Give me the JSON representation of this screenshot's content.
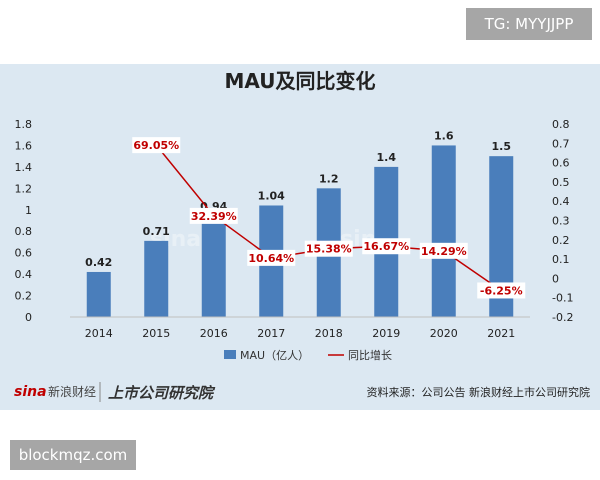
{
  "corner_tag": "TG: MYYJJPP",
  "footer_tag": "blockmqz.com",
  "brand": {
    "sina_logo": "sina",
    "sina_name": "新浪财经",
    "institute_logo": "上市公司研究院"
  },
  "source": "资料来源：公司公告 新浪财经上市公司研究院",
  "colors": {
    "bar": "#4a7ebb",
    "line": "#c00000",
    "label_red": "#c00000",
    "panel_bg": "#dce8f2"
  },
  "chart_data": {
    "type": "bar+line",
    "title": "MAU及同比变化",
    "categories": [
      "2014",
      "2015",
      "2016",
      "2017",
      "2018",
      "2019",
      "2020",
      "2021"
    ],
    "series": [
      {
        "name": "MAU（亿人）",
        "type": "bar",
        "axis": "left",
        "values": [
          0.42,
          0.71,
          0.94,
          1.04,
          1.2,
          1.4,
          1.6,
          1.5
        ],
        "labels": [
          "0.42",
          "0.71",
          "0.94",
          "1.04",
          "1.2",
          "1.4",
          "1.6",
          "1.5"
        ]
      },
      {
        "name": "同比增长",
        "type": "line",
        "axis": "right",
        "values": [
          null,
          0.6905,
          0.3239,
          0.1064,
          0.1538,
          0.1667,
          0.1429,
          -0.0625
        ],
        "labels": [
          null,
          "69.05%",
          "32.39%",
          "10.64%",
          "15.38%",
          "16.67%",
          "14.29%",
          "-6.25%"
        ]
      }
    ],
    "y_left": {
      "min": 0,
      "max": 1.8,
      "ticks": [
        "0",
        "0.2",
        "0.4",
        "0.6",
        "0.8",
        "1",
        "1.2",
        "1.4",
        "1.6",
        "1.8"
      ]
    },
    "y_right": {
      "min": -0.2,
      "max": 0.8,
      "ticks": [
        "-0.2",
        "-0.1",
        "0",
        "0.1",
        "0.2",
        "0.3",
        "0.4",
        "0.5",
        "0.6",
        "0.7",
        "0.8"
      ]
    },
    "grid": false,
    "legend_position": "bottom"
  }
}
